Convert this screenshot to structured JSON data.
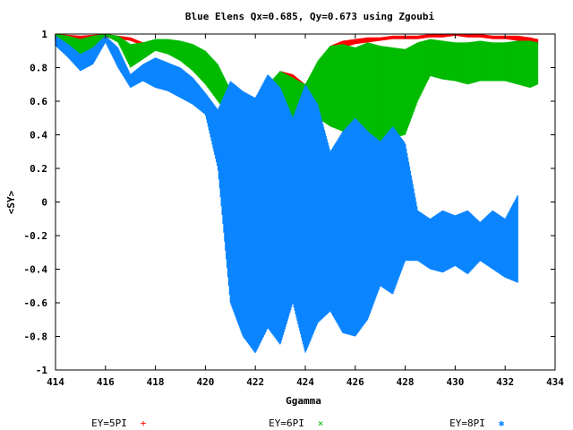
{
  "chart_data": {
    "type": "scatter",
    "title": "Blue Elens Qx=0.685, Qy=0.673 using Zgoubi",
    "xlabel": "Ggamma",
    "ylabel": "<SY>",
    "xlim": [
      414,
      434
    ],
    "ylim": [
      -1,
      1
    ],
    "x_ticks": [
      414,
      416,
      418,
      420,
      422,
      424,
      426,
      428,
      430,
      432,
      434
    ],
    "x_tick_labels": [
      "414",
      "416",
      "418",
      "420",
      "422",
      "424",
      "426",
      "428",
      "430",
      "432",
      "434"
    ],
    "y_ticks": [
      -1,
      -0.8,
      -0.6,
      -0.4,
      -0.2,
      0,
      0.2,
      0.4,
      0.6,
      0.8,
      1
    ],
    "y_tick_labels": [
      "-1",
      "-0.8",
      "-0.6",
      "-0.4",
      "-0.2",
      "0",
      "0.2",
      "0.4",
      "0.6",
      "0.8",
      "1"
    ],
    "grid": false,
    "legend_position": "bottom",
    "series": [
      {
        "name": "EY=5PI",
        "marker": "+",
        "color": "#ff0000",
        "x": [
          414.0,
          415.0,
          416.0,
          416.5,
          417.0,
          417.5,
          418.0,
          418.5,
          419.0,
          419.5,
          420.0,
          420.5,
          421.0,
          421.5,
          422.0,
          422.5,
          423.0,
          423.5,
          424.0,
          424.5,
          425.0,
          425.5,
          426.0,
          426.5,
          427.0,
          427.5,
          428.0,
          428.5,
          429.0,
          429.5,
          430.0,
          430.5,
          431.0,
          431.5,
          432.0,
          432.5,
          433.0,
          433.3
        ],
        "upper": [
          1.0,
          0.99,
          1.0,
          0.99,
          0.98,
          0.95,
          0.95,
          0.96,
          0.95,
          0.93,
          0.88,
          0.8,
          0.66,
          0.55,
          0.6,
          0.68,
          0.78,
          0.76,
          0.7,
          0.82,
          0.93,
          0.96,
          0.97,
          0.98,
          0.98,
          0.99,
          0.99,
          0.99,
          1.0,
          1.0,
          1.0,
          1.0,
          1.0,
          0.99,
          0.99,
          0.99,
          0.98,
          0.97
        ],
        "lower": [
          0.96,
          0.92,
          0.98,
          0.97,
          0.96,
          0.93,
          0.93,
          0.94,
          0.93,
          0.89,
          0.84,
          0.75,
          0.6,
          0.5,
          0.55,
          0.62,
          0.72,
          0.7,
          0.66,
          0.78,
          0.88,
          0.92,
          0.94,
          0.95,
          0.96,
          0.97,
          0.97,
          0.97,
          0.98,
          0.98,
          0.99,
          0.98,
          0.98,
          0.97,
          0.97,
          0.96,
          0.95,
          0.94
        ]
      },
      {
        "name": "EY=6PI",
        "marker": "×",
        "color": "#00bb00",
        "x": [
          414.0,
          414.5,
          415.0,
          415.5,
          416.0,
          416.5,
          417.0,
          417.5,
          418.0,
          418.5,
          419.0,
          419.5,
          420.0,
          420.5,
          421.0,
          421.5,
          422.0,
          422.5,
          423.0,
          423.5,
          424.0,
          424.5,
          425.0,
          425.5,
          426.0,
          426.5,
          427.0,
          427.5,
          428.0,
          428.5,
          429.0,
          429.5,
          430.0,
          430.5,
          431.0,
          431.5,
          432.0,
          432.5,
          433.0,
          433.3
        ],
        "upper": [
          1.0,
          0.99,
          0.97,
          0.99,
          1.0,
          0.99,
          0.94,
          0.95,
          0.97,
          0.97,
          0.96,
          0.94,
          0.9,
          0.82,
          0.67,
          0.56,
          0.62,
          0.7,
          0.78,
          0.74,
          0.7,
          0.84,
          0.93,
          0.94,
          0.92,
          0.95,
          0.93,
          0.92,
          0.91,
          0.95,
          0.97,
          0.96,
          0.95,
          0.95,
          0.96,
          0.95,
          0.95,
          0.96,
          0.96,
          0.95
        ],
        "lower": [
          0.97,
          0.94,
          0.88,
          0.92,
          0.99,
          0.95,
          0.8,
          0.85,
          0.9,
          0.88,
          0.84,
          0.78,
          0.7,
          0.6,
          0.5,
          0.4,
          0.42,
          0.48,
          0.55,
          0.5,
          0.45,
          0.5,
          0.45,
          0.42,
          0.38,
          0.4,
          0.35,
          0.38,
          0.4,
          0.6,
          0.75,
          0.73,
          0.72,
          0.7,
          0.72,
          0.72,
          0.72,
          0.7,
          0.68,
          0.7
        ]
      },
      {
        "name": "EY=8PI",
        "marker": "✱",
        "color": "#0a84ff",
        "x": [
          414.0,
          414.5,
          415.0,
          415.5,
          416.0,
          416.5,
          417.0,
          417.5,
          418.0,
          418.5,
          419.0,
          419.5,
          420.0,
          420.5,
          421.0,
          421.5,
          422.0,
          422.5,
          423.0,
          423.5,
          424.0,
          424.5,
          425.0,
          425.5,
          426.0,
          426.5,
          427.0,
          427.5,
          428.0,
          428.5,
          429.0,
          429.5,
          430.0,
          430.5,
          431.0,
          431.5,
          432.0,
          432.5
        ],
        "upper": [
          0.99,
          0.94,
          0.88,
          0.92,
          0.99,
          0.92,
          0.76,
          0.82,
          0.86,
          0.83,
          0.8,
          0.74,
          0.65,
          0.55,
          0.72,
          0.66,
          0.62,
          0.76,
          0.68,
          0.5,
          0.7,
          0.58,
          0.3,
          0.42,
          0.5,
          0.42,
          0.36,
          0.45,
          0.35,
          -0.05,
          -0.1,
          -0.05,
          -0.08,
          -0.05,
          -0.12,
          -0.05,
          -0.1,
          0.04
        ],
        "lower": [
          0.93,
          0.86,
          0.78,
          0.82,
          0.95,
          0.8,
          0.68,
          0.72,
          0.68,
          0.66,
          0.62,
          0.58,
          0.52,
          0.2,
          -0.6,
          -0.8,
          -0.9,
          -0.75,
          -0.85,
          -0.6,
          -0.9,
          -0.72,
          -0.65,
          -0.78,
          -0.8,
          -0.7,
          -0.5,
          -0.55,
          -0.35,
          -0.35,
          -0.4,
          -0.42,
          -0.38,
          -0.43,
          -0.35,
          -0.4,
          -0.45,
          -0.48
        ]
      }
    ]
  }
}
